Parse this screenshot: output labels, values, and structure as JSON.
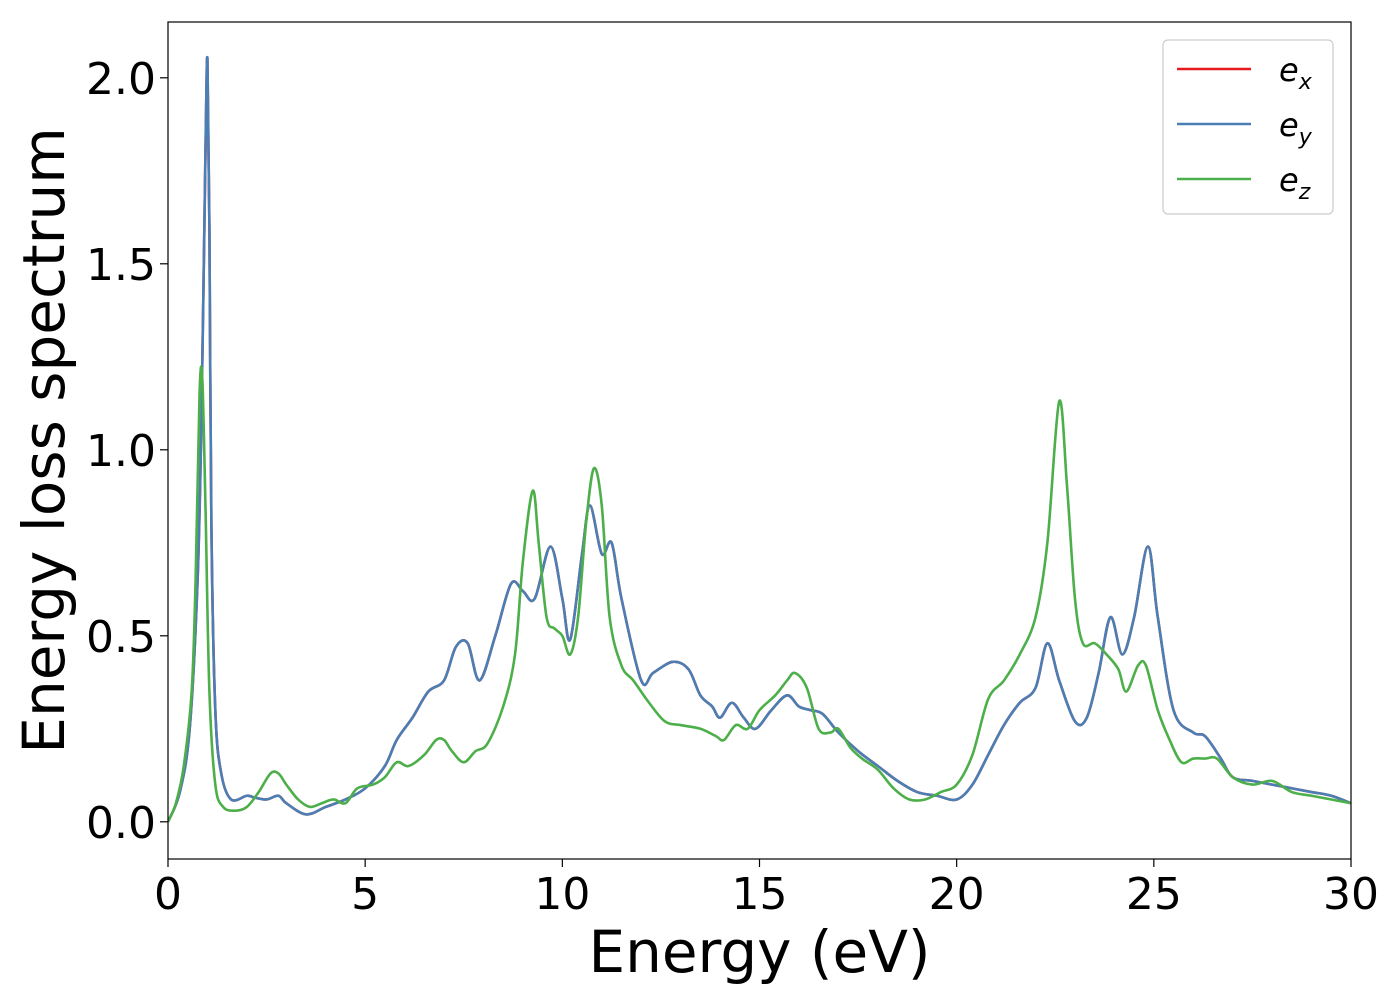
{
  "chart_data": {
    "type": "line",
    "title": "",
    "xlabel": "Energy (eV)",
    "ylabel": "Energy loss spectrum",
    "xlim": [
      0,
      30
    ],
    "ylim": [
      -0.1,
      2.15
    ],
    "xticks": [
      "0",
      "5",
      "10",
      "15",
      "20",
      "25",
      "30"
    ],
    "yticks": [
      "0.0",
      "0.5",
      "1.0",
      "1.5",
      "2.0"
    ],
    "grid": false,
    "legend_position": "top-right",
    "series": [
      {
        "name": "e_x",
        "legend_base": "e",
        "legend_sub": "x",
        "color": "#e41a1c",
        "x": [
          0,
          0.3,
          0.55,
          0.75,
          0.85,
          0.95,
          1.0,
          1.05,
          1.1,
          1.2,
          1.35,
          1.6,
          2.0,
          2.2,
          2.5,
          2.8,
          3.0,
          3.5,
          4.0,
          4.5,
          5.0,
          5.5,
          5.8,
          6.2,
          6.6,
          7.0,
          7.3,
          7.6,
          7.9,
          8.3,
          8.7,
          9.0,
          9.3,
          9.7,
          10.0,
          10.2,
          10.5,
          10.7,
          11.0,
          11.25,
          11.5,
          12.0,
          12.3,
          12.8,
          13.2,
          13.5,
          13.8,
          14.0,
          14.3,
          14.6,
          14.9,
          15.3,
          15.7,
          16.0,
          16.3,
          16.6,
          17.0,
          17.5,
          18.0,
          18.5,
          19.0,
          19.5,
          20.0,
          20.4,
          20.8,
          21.2,
          21.6,
          22.0,
          22.3,
          22.6,
          23.0,
          23.3,
          23.6,
          23.9,
          24.2,
          24.5,
          24.85,
          25.1,
          25.5,
          26.0,
          26.3,
          26.7,
          27.0,
          27.5,
          28.0,
          28.5,
          29.0,
          29.5,
          30.0
        ],
        "values": [
          0.0,
          0.08,
          0.25,
          0.65,
          1.1,
          1.8,
          2.05,
          1.6,
          0.8,
          0.3,
          0.13,
          0.06,
          0.07,
          0.065,
          0.06,
          0.07,
          0.05,
          0.02,
          0.04,
          0.06,
          0.09,
          0.15,
          0.22,
          0.28,
          0.35,
          0.38,
          0.47,
          0.48,
          0.38,
          0.5,
          0.64,
          0.62,
          0.6,
          0.74,
          0.6,
          0.49,
          0.72,
          0.85,
          0.72,
          0.75,
          0.6,
          0.38,
          0.4,
          0.43,
          0.41,
          0.34,
          0.31,
          0.28,
          0.32,
          0.28,
          0.25,
          0.3,
          0.34,
          0.31,
          0.3,
          0.29,
          0.24,
          0.19,
          0.15,
          0.11,
          0.08,
          0.07,
          0.06,
          0.1,
          0.18,
          0.26,
          0.32,
          0.36,
          0.48,
          0.38,
          0.27,
          0.28,
          0.4,
          0.55,
          0.45,
          0.55,
          0.74,
          0.55,
          0.3,
          0.24,
          0.23,
          0.17,
          0.12,
          0.11,
          0.1,
          0.09,
          0.08,
          0.07,
          0.05
        ]
      },
      {
        "name": "e_y",
        "legend_base": "e",
        "legend_sub": "y",
        "color": "#4a7fb5",
        "x": [
          0,
          0.3,
          0.55,
          0.75,
          0.85,
          0.95,
          1.0,
          1.05,
          1.1,
          1.2,
          1.35,
          1.6,
          2.0,
          2.2,
          2.5,
          2.8,
          3.0,
          3.5,
          4.0,
          4.5,
          5.0,
          5.5,
          5.8,
          6.2,
          6.6,
          7.0,
          7.3,
          7.6,
          7.9,
          8.3,
          8.7,
          9.0,
          9.3,
          9.7,
          10.0,
          10.2,
          10.5,
          10.7,
          11.0,
          11.25,
          11.5,
          12.0,
          12.3,
          12.8,
          13.2,
          13.5,
          13.8,
          14.0,
          14.3,
          14.6,
          14.9,
          15.3,
          15.7,
          16.0,
          16.3,
          16.6,
          17.0,
          17.5,
          18.0,
          18.5,
          19.0,
          19.5,
          20.0,
          20.4,
          20.8,
          21.2,
          21.6,
          22.0,
          22.3,
          22.6,
          23.0,
          23.3,
          23.6,
          23.9,
          24.2,
          24.5,
          24.85,
          25.1,
          25.5,
          26.0,
          26.3,
          26.7,
          27.0,
          27.5,
          28.0,
          28.5,
          29.0,
          29.5,
          30.0
        ],
        "values": [
          0.0,
          0.08,
          0.25,
          0.65,
          1.1,
          1.8,
          2.05,
          1.6,
          0.8,
          0.3,
          0.13,
          0.06,
          0.07,
          0.065,
          0.06,
          0.07,
          0.05,
          0.02,
          0.04,
          0.06,
          0.09,
          0.15,
          0.22,
          0.28,
          0.35,
          0.38,
          0.47,
          0.48,
          0.38,
          0.5,
          0.64,
          0.62,
          0.6,
          0.74,
          0.6,
          0.49,
          0.72,
          0.85,
          0.72,
          0.75,
          0.6,
          0.38,
          0.4,
          0.43,
          0.41,
          0.34,
          0.31,
          0.28,
          0.32,
          0.28,
          0.25,
          0.3,
          0.34,
          0.31,
          0.3,
          0.29,
          0.24,
          0.19,
          0.15,
          0.11,
          0.08,
          0.07,
          0.06,
          0.1,
          0.18,
          0.26,
          0.32,
          0.36,
          0.48,
          0.38,
          0.27,
          0.28,
          0.4,
          0.55,
          0.45,
          0.55,
          0.74,
          0.55,
          0.3,
          0.24,
          0.23,
          0.17,
          0.12,
          0.11,
          0.1,
          0.09,
          0.08,
          0.07,
          0.05
        ]
      },
      {
        "name": "e_z",
        "legend_base": "e",
        "legend_sub": "z",
        "color": "#4daf4a",
        "x": [
          0,
          0.2,
          0.4,
          0.6,
          0.7,
          0.8,
          0.87,
          0.95,
          1.05,
          1.2,
          1.4,
          1.7,
          2.0,
          2.3,
          2.6,
          2.8,
          3.0,
          3.3,
          3.6,
          3.9,
          4.2,
          4.5,
          4.8,
          5.2,
          5.5,
          5.8,
          6.1,
          6.5,
          6.8,
          7.0,
          7.2,
          7.5,
          7.8,
          8.1,
          8.5,
          8.8,
          9.0,
          9.25,
          9.4,
          9.6,
          9.8,
          10.0,
          10.2,
          10.4,
          10.6,
          10.8,
          11.0,
          11.2,
          11.5,
          11.8,
          12.2,
          12.6,
          13.0,
          13.5,
          13.9,
          14.1,
          14.4,
          14.7,
          15.0,
          15.4,
          15.7,
          15.9,
          16.2,
          16.5,
          16.8,
          17.0,
          17.3,
          17.6,
          18.0,
          18.4,
          18.8,
          19.2,
          19.6,
          20.0,
          20.4,
          20.8,
          21.2,
          21.6,
          22.0,
          22.3,
          22.6,
          22.8,
          23.0,
          23.2,
          23.5,
          23.8,
          24.1,
          24.3,
          24.6,
          24.8,
          25.1,
          25.4,
          25.7,
          26.0,
          26.3,
          26.6,
          27.0,
          27.5,
          28.0,
          28.5,
          29.0,
          29.5,
          30.0
        ],
        "values": [
          0.0,
          0.05,
          0.15,
          0.35,
          0.65,
          1.15,
          1.19,
          0.85,
          0.35,
          0.1,
          0.04,
          0.03,
          0.04,
          0.08,
          0.13,
          0.13,
          0.1,
          0.06,
          0.04,
          0.05,
          0.06,
          0.05,
          0.09,
          0.1,
          0.12,
          0.16,
          0.15,
          0.18,
          0.22,
          0.22,
          0.19,
          0.16,
          0.19,
          0.21,
          0.31,
          0.45,
          0.7,
          0.89,
          0.75,
          0.55,
          0.52,
          0.5,
          0.45,
          0.55,
          0.8,
          0.95,
          0.85,
          0.55,
          0.42,
          0.38,
          0.32,
          0.27,
          0.26,
          0.25,
          0.23,
          0.22,
          0.26,
          0.25,
          0.3,
          0.34,
          0.38,
          0.4,
          0.36,
          0.25,
          0.24,
          0.25,
          0.2,
          0.17,
          0.14,
          0.09,
          0.06,
          0.06,
          0.08,
          0.1,
          0.18,
          0.33,
          0.38,
          0.45,
          0.55,
          0.75,
          1.13,
          0.9,
          0.6,
          0.48,
          0.48,
          0.45,
          0.41,
          0.35,
          0.42,
          0.42,
          0.3,
          0.22,
          0.16,
          0.17,
          0.17,
          0.17,
          0.12,
          0.1,
          0.11,
          0.08,
          0.07,
          0.06,
          0.05
        ]
      }
    ]
  }
}
